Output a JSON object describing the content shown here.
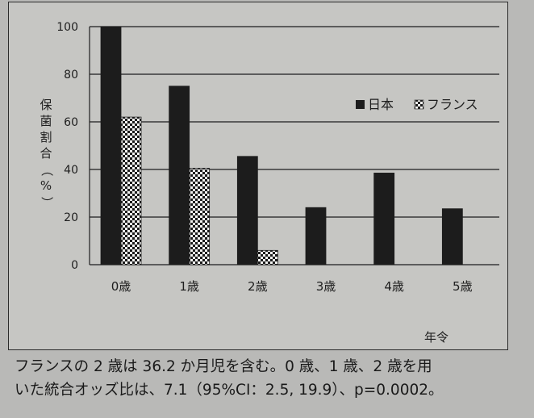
{
  "chart_data": {
    "type": "bar",
    "categories": [
      "0歳",
      "1歳",
      "2歳",
      "3歳",
      "4歳",
      "5歳"
    ],
    "series": [
      {
        "name": "日本",
        "values": [
          100,
          75,
          45.5,
          24,
          38.5,
          23.5
        ],
        "color": "#1c1c1c",
        "pattern": "solid"
      },
      {
        "name": "フランス",
        "values": [
          62,
          40.5,
          6,
          null,
          null,
          null
        ],
        "color": "#1c1c1c",
        "pattern": "checker"
      }
    ],
    "ylabel": "保菌割合（%）",
    "ylabel_chars": [
      "保",
      "菌",
      "割",
      "合",
      "（",
      "%",
      "）"
    ],
    "xlabel": "年令",
    "ylim": [
      0,
      100
    ],
    "yticks": [
      0,
      20,
      40,
      60,
      80,
      100
    ],
    "grid": true,
    "legend_position": "top-right"
  },
  "caption": {
    "line1": "フランスの 2 歳は 36.2 か月児を含む。0 歳、1 歳、2 歳を用",
    "line2": "いた統合オッズ比は、7.1（95%CI：2.5, 19.9）、p=0.0002。"
  }
}
